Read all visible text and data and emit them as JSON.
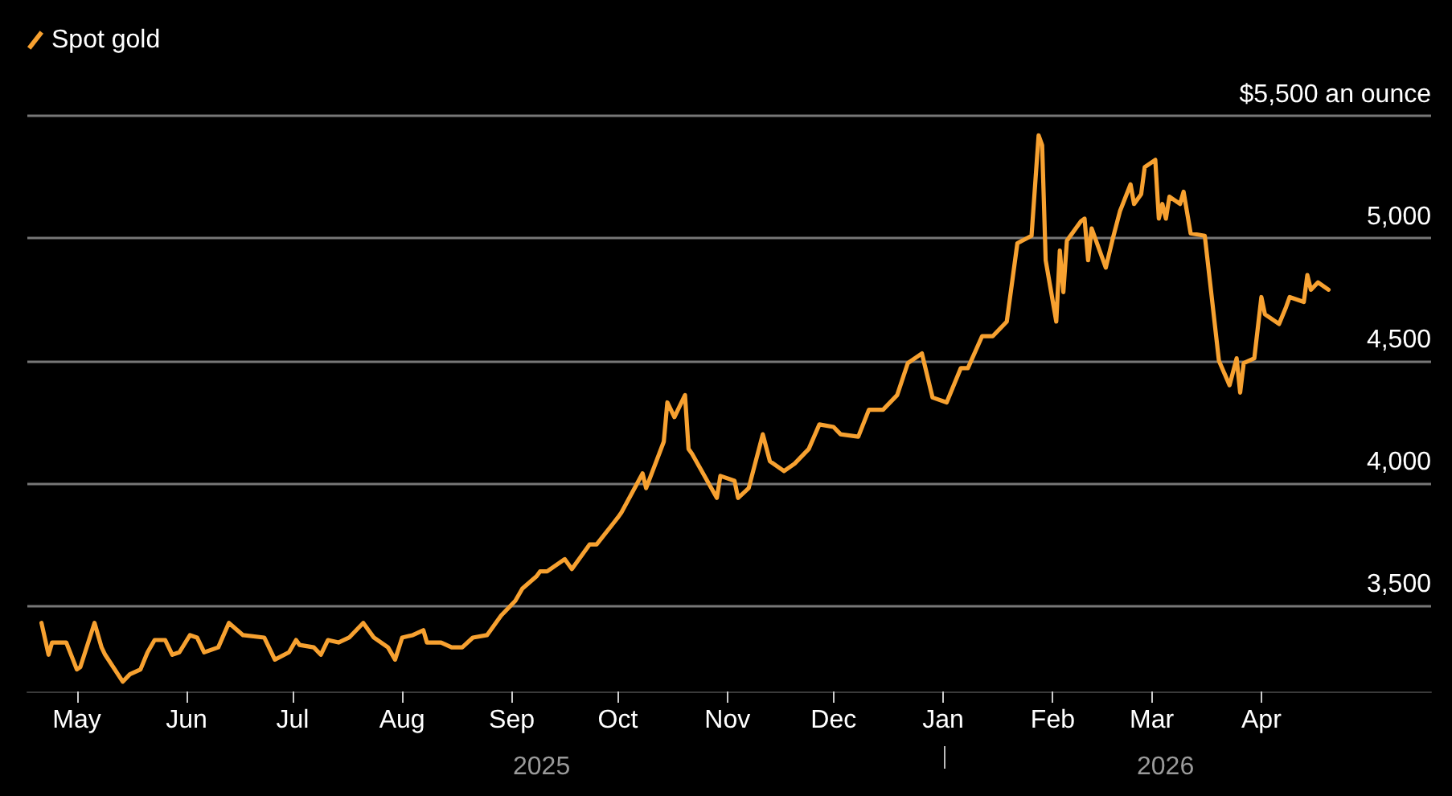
{
  "chart_data": {
    "type": "line",
    "annotations": [
      "2025",
      "2026"
    ],
    "xlim": [
      "2025-04-17",
      "2026-05-19"
    ],
    "xticks": [
      {
        "value": "2025-05-01",
        "label": "May"
      },
      {
        "value": "2025-06-01",
        "label": "Jun"
      },
      {
        "value": "2025-07-01",
        "label": "Jul"
      },
      {
        "value": "2025-08-01",
        "label": "Aug"
      },
      {
        "value": "2025-09-01",
        "label": "Sep"
      },
      {
        "value": "2025-10-01",
        "label": "Oct"
      },
      {
        "value": "2025-11-01",
        "label": "Nov"
      },
      {
        "value": "2025-12-01",
        "label": "Dec"
      },
      {
        "value": "2026-01-01",
        "label": "Jan"
      },
      {
        "value": "2026-02-01",
        "label": "Feb"
      },
      {
        "value": "2026-03-01",
        "label": "Mar"
      },
      {
        "value": "2026-04-01",
        "label": "Apr"
      }
    ],
    "ylim": [
      3150,
      5500
    ],
    "yticks": [
      {
        "value": 3500,
        "label": "3,500"
      },
      {
        "value": 4000,
        "label": "4,000"
      },
      {
        "value": 4500,
        "label": "4,500"
      },
      {
        "value": 5000,
        "label": "5,000"
      },
      {
        "value": 5500,
        "label": "$5,500 an ounce"
      }
    ],
    "grid": "y",
    "legend": "top left",
    "marker": "none",
    "line_style": "solid",
    "series": [
      {
        "name": "Spot gold",
        "color": "#f7a130",
        "x": [
          "2025-04-21",
          "2025-04-23",
          "2025-04-24",
          "2025-04-28",
          "2025-05-01",
          "2025-05-02",
          "2025-05-06",
          "2025-05-08",
          "2025-05-09",
          "2025-05-14",
          "2025-05-16",
          "2025-05-19",
          "2025-05-21",
          "2025-05-23",
          "2025-05-26",
          "2025-05-28",
          "2025-05-30",
          "2025-06-02",
          "2025-06-04",
          "2025-06-06",
          "2025-06-10",
          "2025-06-13",
          "2025-06-17",
          "2025-06-23",
          "2025-06-26",
          "2025-06-30",
          "2025-07-02",
          "2025-07-03",
          "2025-07-07",
          "2025-07-09",
          "2025-07-11",
          "2025-07-14",
          "2025-07-17",
          "2025-07-21",
          "2025-07-24",
          "2025-07-28",
          "2025-07-30",
          "2025-08-01",
          "2025-08-04",
          "2025-08-07",
          "2025-08-08",
          "2025-08-12",
          "2025-08-15",
          "2025-08-18",
          "2025-08-21",
          "2025-08-25",
          "2025-08-27",
          "2025-08-29",
          "2025-09-02",
          "2025-09-04",
          "2025-09-08",
          "2025-09-09",
          "2025-09-11",
          "2025-09-16",
          "2025-09-18",
          "2025-09-23",
          "2025-09-25",
          "2025-10-01",
          "2025-10-02",
          "2025-10-08",
          "2025-10-09",
          "2025-10-14",
          "2025-10-15",
          "2025-10-17",
          "2025-10-20",
          "2025-10-21",
          "2025-10-22",
          "2025-10-29",
          "2025-10-30",
          "2025-11-03",
          "2025-11-04",
          "2025-11-07",
          "2025-11-11",
          "2025-11-13",
          "2025-11-17",
          "2025-11-20",
          "2025-11-24",
          "2025-11-27",
          "2025-12-01",
          "2025-12-03",
          "2025-12-08",
          "2025-12-11",
          "2025-12-15",
          "2025-12-19",
          "2025-12-22",
          "2025-12-26",
          "2025-12-29",
          "2026-01-02",
          "2026-01-06",
          "2026-01-08",
          "2026-01-12",
          "2026-01-15",
          "2026-01-19",
          "2026-01-22",
          "2026-01-26",
          "2026-01-28",
          "2026-01-29",
          "2026-01-30",
          "2026-02-02",
          "2026-02-03",
          "2026-02-04",
          "2026-02-05",
          "2026-02-09",
          "2026-02-10",
          "2026-02-11",
          "2026-02-12",
          "2026-02-16",
          "2026-02-18",
          "2026-02-20",
          "2026-02-23",
          "2026-02-24",
          "2026-02-26",
          "2026-02-27",
          "2026-03-02",
          "2026-03-03",
          "2026-03-04",
          "2026-03-05",
          "2026-03-06",
          "2026-03-09",
          "2026-03-10",
          "2026-03-12",
          "2026-03-16",
          "2026-03-20",
          "2026-03-23",
          "2026-03-25",
          "2026-03-26",
          "2026-03-27",
          "2026-03-30",
          "2026-04-01",
          "2026-04-02",
          "2026-04-06",
          "2026-04-08",
          "2026-04-09",
          "2026-04-13",
          "2026-04-14",
          "2026-04-15",
          "2026-04-17",
          "2026-04-20"
        ],
        "values": [
          3430,
          3300,
          3350,
          3350,
          3240,
          3250,
          3430,
          3330,
          3300,
          3190,
          3220,
          3240,
          3310,
          3360,
          3360,
          3300,
          3310,
          3380,
          3370,
          3310,
          3330,
          3430,
          3380,
          3370,
          3280,
          3310,
          3360,
          3340,
          3330,
          3300,
          3360,
          3350,
          3370,
          3430,
          3370,
          3330,
          3280,
          3370,
          3380,
          3400,
          3350,
          3350,
          3330,
          3330,
          3370,
          3380,
          3420,
          3460,
          3520,
          3570,
          3620,
          3640,
          3640,
          3690,
          3650,
          3750,
          3750,
          3860,
          3880,
          4040,
          3980,
          4170,
          4330,
          4270,
          4360,
          4140,
          4120,
          3940,
          4030,
          4010,
          3940,
          3980,
          4200,
          4090,
          4050,
          4080,
          4140,
          4240,
          4230,
          4200,
          4190,
          4300,
          4300,
          4360,
          4490,
          4530,
          4350,
          4330,
          4470,
          4470,
          4600,
          4600,
          4660,
          4980,
          5010,
          5420,
          5380,
          4910,
          4660,
          4950,
          4780,
          4990,
          5070,
          5080,
          4910,
          5040,
          4880,
          5000,
          5110,
          5220,
          5140,
          5180,
          5290,
          5320,
          5080,
          5140,
          5080,
          5170,
          5140,
          5190,
          5020,
          5010,
          4500,
          4400,
          4510,
          4370,
          4490,
          4510,
          4760,
          4690,
          4650,
          4720,
          4760,
          4740,
          4850,
          4790,
          4820,
          4790
        ]
      }
    ]
  }
}
